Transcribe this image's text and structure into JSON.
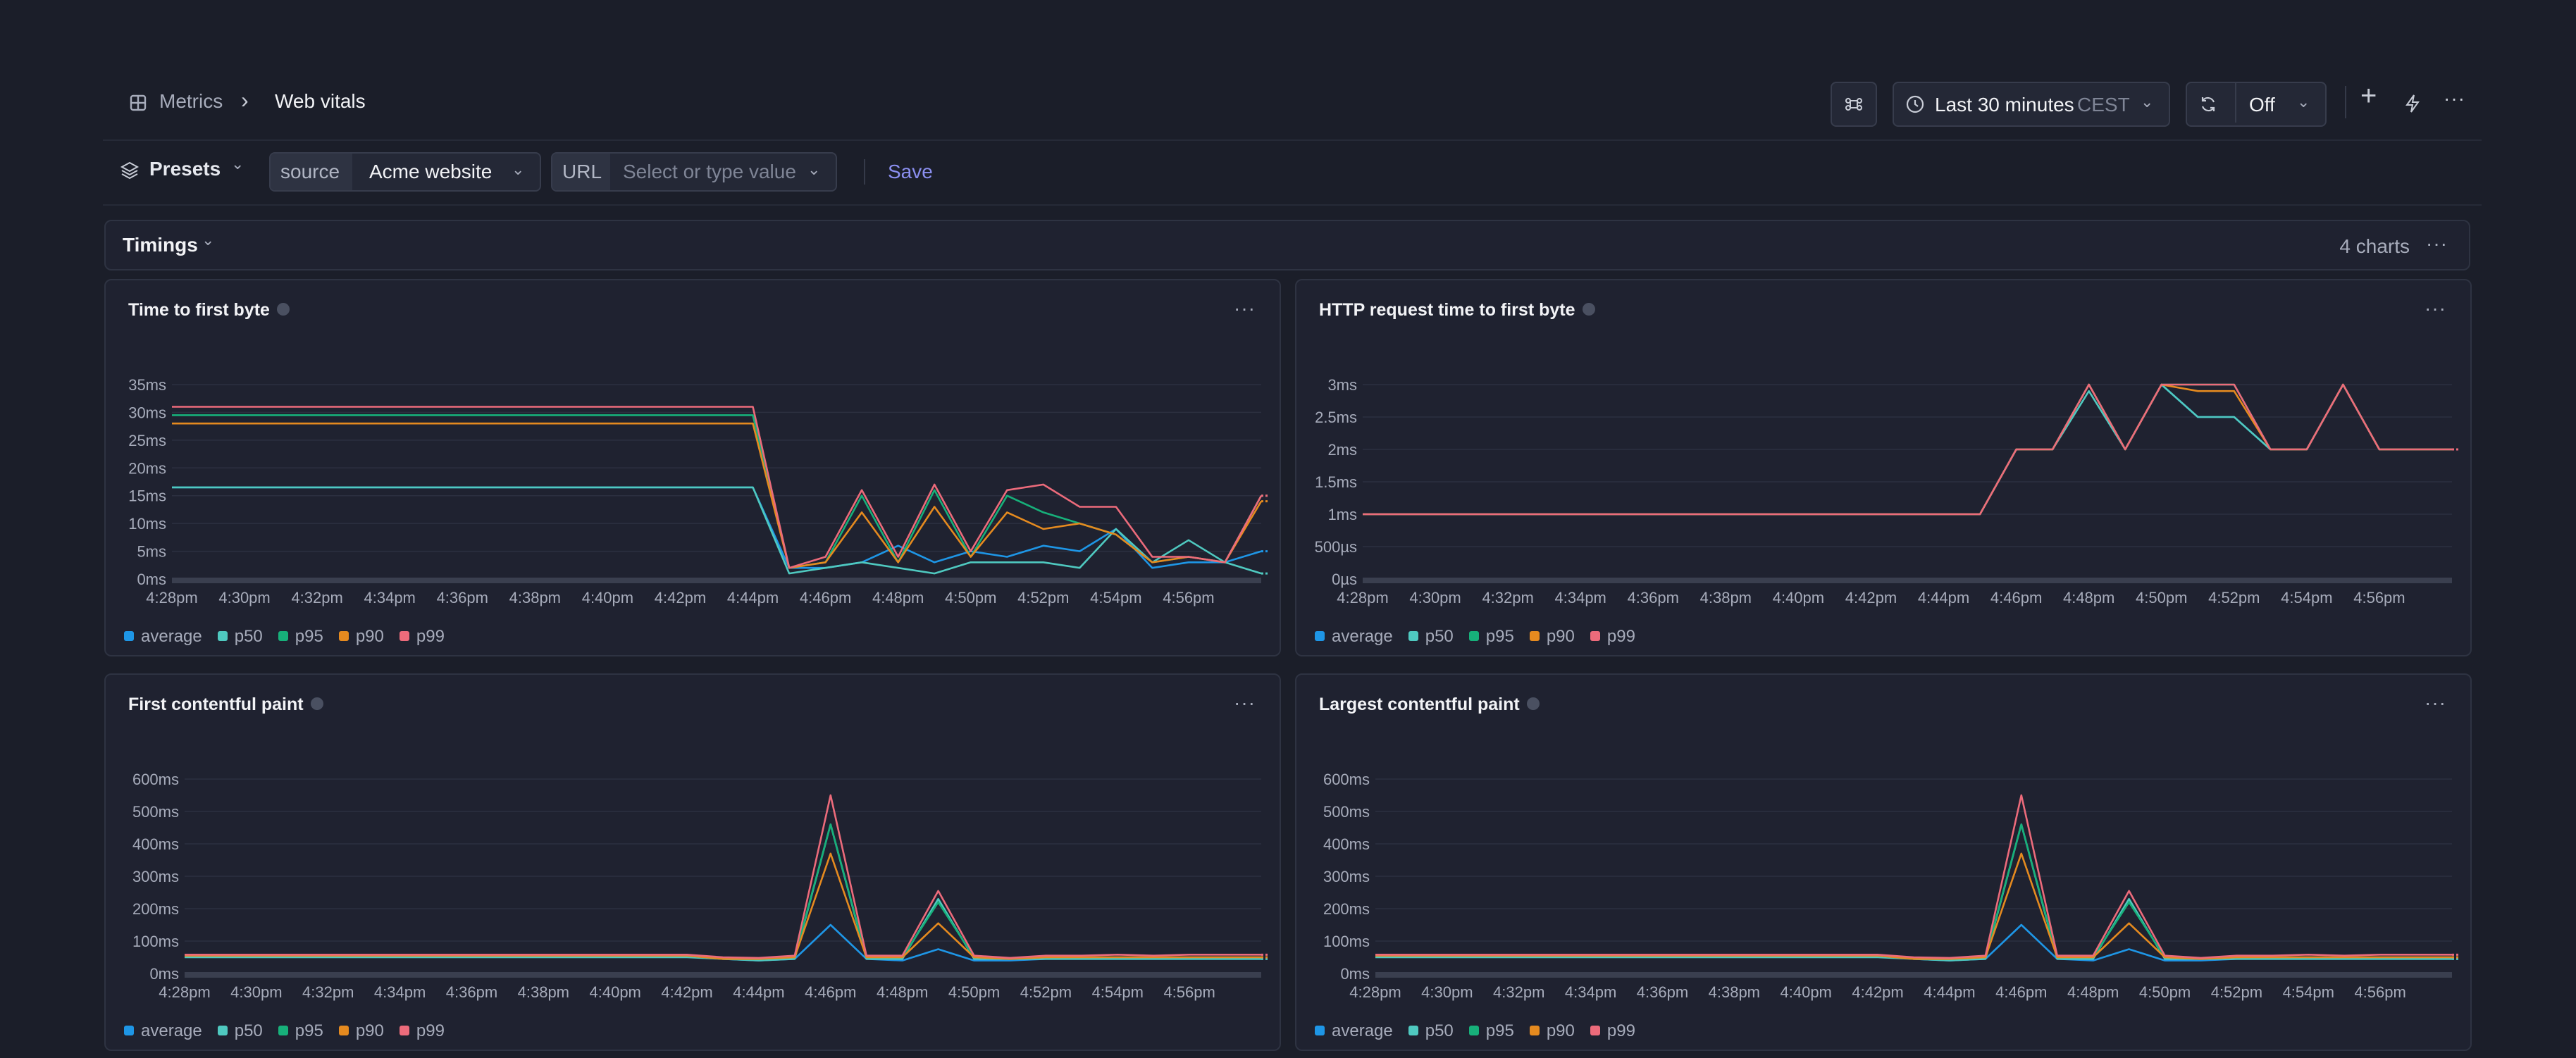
{
  "breadcrumb": {
    "parent": "Metrics",
    "current": "Web vitals"
  },
  "header": {
    "time_range": "Last 30 minutes",
    "timezone": "CEST",
    "refresh": "Off"
  },
  "toolbar": {
    "presets": "Presets",
    "source_label": "source",
    "source_value": "Acme website",
    "url_label": "URL",
    "url_placeholder": "Select or type value",
    "save": "Save"
  },
  "section": {
    "title": "Timings",
    "count": "4 charts"
  },
  "legend_colors": {
    "average": "#1e96e6",
    "p50": "#4fc9c0",
    "p95": "#17b07a",
    "p90": "#e58a1f",
    "p99": "#ec6b7b"
  },
  "x_tick_labels": [
    "4:28pm",
    "4:30pm",
    "4:32pm",
    "4:34pm",
    "4:36pm",
    "4:38pm",
    "4:40pm",
    "4:42pm",
    "4:44pm",
    "4:46pm",
    "4:48pm",
    "4:50pm",
    "4:52pm",
    "4:54pm",
    "4:56pm"
  ],
  "chart_data": [
    {
      "type": "line",
      "title": "Time to first byte",
      "y_ticks": [
        "0ms",
        "5ms",
        "10ms",
        "15ms",
        "20ms",
        "25ms",
        "30ms",
        "35ms"
      ],
      "ylim": [
        0,
        35
      ],
      "x": [
        0,
        1,
        2,
        3,
        4,
        5,
        6,
        7,
        8,
        9,
        10,
        11,
        12,
        13,
        14,
        15,
        16,
        17,
        18,
        19,
        20,
        21,
        22,
        23,
        24,
        25,
        26,
        27,
        28,
        29,
        30
      ],
      "series": [
        {
          "name": "average",
          "values": [
            16.5,
            16.5,
            16.5,
            16.5,
            16.5,
            16.5,
            16.5,
            16.5,
            16.5,
            16.5,
            16.5,
            16.5,
            16.5,
            16.5,
            16.5,
            16.5,
            16.5,
            2,
            2,
            3,
            6,
            3,
            5,
            4,
            6,
            5,
            9,
            2,
            3,
            3,
            5
          ]
        },
        {
          "name": "p50",
          "values": [
            16.5,
            16.5,
            16.5,
            16.5,
            16.5,
            16.5,
            16.5,
            16.5,
            16.5,
            16.5,
            16.5,
            16.5,
            16.5,
            16.5,
            16.5,
            16.5,
            16.5,
            1,
            2,
            3,
            2,
            1,
            3,
            3,
            3,
            2,
            9,
            3,
            7,
            3,
            1
          ]
        },
        {
          "name": "p95",
          "values": [
            29.5,
            29.5,
            29.5,
            29.5,
            29.5,
            29.5,
            29.5,
            29.5,
            29.5,
            29.5,
            29.5,
            29.5,
            29.5,
            29.5,
            29.5,
            29.5,
            29.5,
            2,
            3,
            15,
            3,
            16,
            4,
            15,
            12,
            10,
            8,
            3,
            4,
            3,
            15
          ]
        },
        {
          "name": "p90",
          "values": [
            28,
            28,
            28,
            28,
            28,
            28,
            28,
            28,
            28,
            28,
            28,
            28,
            28,
            28,
            28,
            28,
            28,
            2,
            3,
            12,
            3,
            13,
            4,
            12,
            9,
            10,
            8,
            3,
            4,
            3,
            14
          ]
        },
        {
          "name": "p99",
          "values": [
            31,
            31,
            31,
            31,
            31,
            31,
            31,
            31,
            31,
            31,
            31,
            31,
            31,
            31,
            31,
            31,
            31,
            2,
            4,
            16,
            4,
            17,
            5,
            16,
            17,
            13,
            13,
            4,
            4,
            3,
            15
          ]
        }
      ]
    },
    {
      "type": "line",
      "title": "HTTP request time to first byte",
      "y_ticks": [
        "0µs",
        "500µs",
        "1ms",
        "1.5ms",
        "2ms",
        "2.5ms",
        "3ms"
      ],
      "ylim": [
        0,
        3
      ],
      "x": [
        0,
        1,
        2,
        3,
        4,
        5,
        6,
        7,
        8,
        9,
        10,
        11,
        12,
        13,
        14,
        15,
        16,
        17,
        18,
        19,
        20,
        21,
        22,
        23,
        24,
        25,
        26,
        27,
        28,
        29,
        30
      ],
      "series": [
        {
          "name": "average",
          "values": [
            1,
            1,
            1,
            1,
            1,
            1,
            1,
            1,
            1,
            1,
            1,
            1,
            1,
            1,
            1,
            1,
            1,
            1,
            2,
            2,
            3,
            2,
            3,
            2.5,
            2.5,
            2,
            2,
            3,
            2,
            2,
            2
          ]
        },
        {
          "name": "p50",
          "values": [
            1,
            1,
            1,
            1,
            1,
            1,
            1,
            1,
            1,
            1,
            1,
            1,
            1,
            1,
            1,
            1,
            1,
            1,
            2,
            2,
            2.9,
            2,
            3,
            2.5,
            2.5,
            2,
            2,
            3,
            2,
            2,
            2
          ]
        },
        {
          "name": "p95",
          "values": [
            1,
            1,
            1,
            1,
            1,
            1,
            1,
            1,
            1,
            1,
            1,
            1,
            1,
            1,
            1,
            1,
            1,
            1,
            2,
            2,
            3,
            2,
            3,
            3,
            3,
            2,
            2,
            3,
            2,
            2,
            2
          ]
        },
        {
          "name": "p90",
          "values": [
            1,
            1,
            1,
            1,
            1,
            1,
            1,
            1,
            1,
            1,
            1,
            1,
            1,
            1,
            1,
            1,
            1,
            1,
            2,
            2,
            3,
            2,
            3,
            2.9,
            2.9,
            2,
            2,
            3,
            2,
            2,
            2
          ]
        },
        {
          "name": "p99",
          "values": [
            1,
            1,
            1,
            1,
            1,
            1,
            1,
            1,
            1,
            1,
            1,
            1,
            1,
            1,
            1,
            1,
            1,
            1,
            2,
            2,
            3,
            2,
            3,
            3,
            3,
            2,
            2,
            3,
            2,
            2,
            2
          ]
        }
      ]
    },
    {
      "type": "line",
      "title": "First contentful paint",
      "y_ticks": [
        "0ms",
        "100ms",
        "200ms",
        "300ms",
        "400ms",
        "500ms",
        "600ms"
      ],
      "ylim": [
        0,
        600
      ],
      "x": [
        0,
        1,
        2,
        3,
        4,
        5,
        6,
        7,
        8,
        9,
        10,
        11,
        12,
        13,
        14,
        15,
        16,
        17,
        18,
        19,
        20,
        21,
        22,
        23,
        24,
        25,
        26,
        27,
        28,
        29,
        30
      ],
      "series": [
        {
          "name": "average",
          "values": [
            55,
            55,
            55,
            55,
            55,
            55,
            55,
            55,
            55,
            55,
            55,
            55,
            55,
            55,
            55,
            45,
            40,
            45,
            150,
            45,
            40,
            75,
            40,
            40,
            45,
            45,
            45,
            45,
            45,
            45,
            45
          ]
        },
        {
          "name": "p50",
          "values": [
            50,
            50,
            50,
            50,
            50,
            50,
            50,
            50,
            50,
            50,
            50,
            50,
            50,
            50,
            50,
            45,
            40,
            45,
            460,
            45,
            45,
            230,
            45,
            45,
            45,
            45,
            45,
            45,
            45,
            45,
            45
          ]
        },
        {
          "name": "p95",
          "values": [
            55,
            55,
            55,
            55,
            55,
            55,
            55,
            55,
            55,
            55,
            55,
            55,
            55,
            55,
            55,
            45,
            45,
            50,
            460,
            50,
            50,
            220,
            50,
            45,
            50,
            50,
            50,
            50,
            50,
            50,
            50
          ]
        },
        {
          "name": "p90",
          "values": [
            55,
            55,
            55,
            55,
            55,
            55,
            55,
            55,
            55,
            55,
            55,
            55,
            55,
            55,
            55,
            45,
            45,
            50,
            370,
            50,
            50,
            155,
            50,
            45,
            50,
            50,
            50,
            50,
            50,
            50,
            50
          ]
        },
        {
          "name": "p99",
          "values": [
            58,
            58,
            58,
            58,
            58,
            58,
            58,
            58,
            58,
            58,
            58,
            58,
            58,
            58,
            58,
            50,
            48,
            55,
            550,
            55,
            55,
            255,
            55,
            48,
            55,
            55,
            58,
            55,
            58,
            58,
            58
          ]
        }
      ]
    },
    {
      "type": "line",
      "title": "Largest contentful paint",
      "y_ticks": [
        "0ms",
        "100ms",
        "200ms",
        "300ms",
        "400ms",
        "500ms",
        "600ms"
      ],
      "ylim": [
        0,
        600
      ],
      "x": [
        0,
        1,
        2,
        3,
        4,
        5,
        6,
        7,
        8,
        9,
        10,
        11,
        12,
        13,
        14,
        15,
        16,
        17,
        18,
        19,
        20,
        21,
        22,
        23,
        24,
        25,
        26,
        27,
        28,
        29,
        30
      ],
      "series": [
        {
          "name": "average",
          "values": [
            55,
            55,
            55,
            55,
            55,
            55,
            55,
            55,
            55,
            55,
            55,
            55,
            55,
            55,
            55,
            45,
            40,
            45,
            150,
            45,
            40,
            75,
            40,
            40,
            45,
            45,
            45,
            45,
            45,
            45,
            45
          ]
        },
        {
          "name": "p50",
          "values": [
            50,
            50,
            50,
            50,
            50,
            50,
            50,
            50,
            50,
            50,
            50,
            50,
            50,
            50,
            50,
            45,
            40,
            45,
            460,
            45,
            45,
            230,
            45,
            45,
            45,
            45,
            45,
            45,
            45,
            45,
            45
          ]
        },
        {
          "name": "p95",
          "values": [
            55,
            55,
            55,
            55,
            55,
            55,
            55,
            55,
            55,
            55,
            55,
            55,
            55,
            55,
            55,
            45,
            45,
            50,
            460,
            50,
            50,
            220,
            50,
            45,
            50,
            50,
            50,
            50,
            50,
            50,
            50
          ]
        },
        {
          "name": "p90",
          "values": [
            55,
            55,
            55,
            55,
            55,
            55,
            55,
            55,
            55,
            55,
            55,
            55,
            55,
            55,
            55,
            45,
            45,
            50,
            370,
            50,
            50,
            155,
            50,
            45,
            50,
            50,
            50,
            50,
            50,
            50,
            50
          ]
        },
        {
          "name": "p99",
          "values": [
            58,
            58,
            58,
            58,
            58,
            58,
            58,
            58,
            58,
            58,
            58,
            58,
            58,
            58,
            58,
            50,
            48,
            55,
            550,
            55,
            55,
            255,
            55,
            48,
            55,
            55,
            58,
            55,
            58,
            58,
            58
          ]
        }
      ]
    }
  ]
}
